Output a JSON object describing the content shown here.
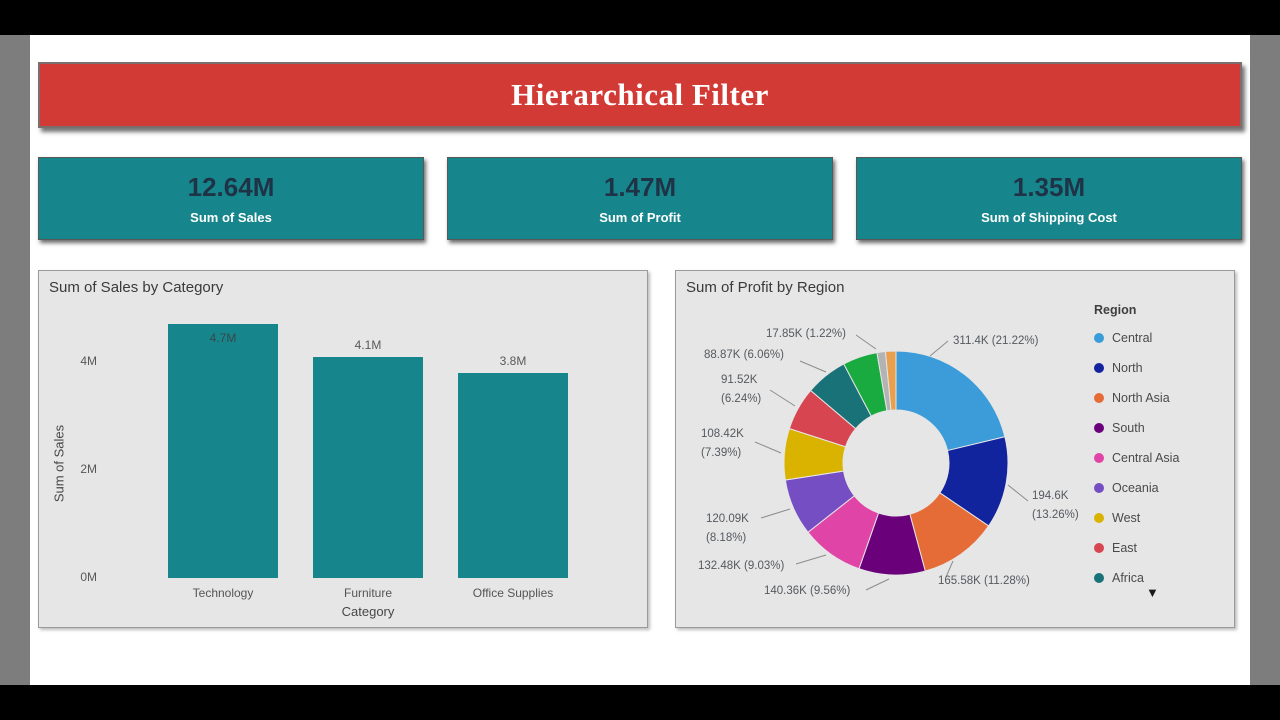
{
  "banner": {
    "title": "Hierarchical Filter"
  },
  "kpi_cards": [
    {
      "value": "12.64M",
      "label": "Sum of Sales"
    },
    {
      "value": "1.47M",
      "label": "Sum of Profit"
    },
    {
      "value": "1.35M",
      "label": "Sum of Shipping Cost"
    }
  ],
  "colors": {
    "teal": "#17868C",
    "banner_red": "#D23B35",
    "outer_bg": "#7D7D7D",
    "page_bg": "#FFFFFF",
    "panel_bg": "#E6E6E6",
    "kpi_value": "#1F3347"
  },
  "icons": {
    "legend_scroll": "chevron-down"
  },
  "chart_data": [
    {
      "type": "bar",
      "title": "Sum of Sales by Category",
      "xlabel": "Category",
      "ylabel": "Sum of Sales",
      "categories": [
        "Technology",
        "Furniture",
        "Office Supplies"
      ],
      "values": [
        4.7,
        4.1,
        3.8
      ],
      "value_labels": [
        "4.7M",
        "4.1M",
        "3.8M"
      ],
      "yticks": [
        {
          "value": 0,
          "label": "0M"
        },
        {
          "value": 2,
          "label": "2M"
        },
        {
          "value": 4,
          "label": "4M"
        }
      ],
      "ylim": [
        0,
        4.85
      ],
      "grid": false,
      "bar_color": "#17868C"
    },
    {
      "type": "pie",
      "subtype": "donut",
      "title": "Sum of Profit by Region",
      "legend_title": "Region",
      "legend_position": "right",
      "slices": [
        {
          "label": "Central",
          "value": "311.4K",
          "pct": 21.22,
          "color": "#3B9CD9",
          "callout": "311.4K (21.22%)"
        },
        {
          "label": "North",
          "value": "194.6K",
          "pct": 13.26,
          "color": "#12239E",
          "callout": "194.6K (13.26%)"
        },
        {
          "label": "North Asia",
          "value": "165.58K",
          "pct": 11.28,
          "color": "#E66C37",
          "callout": "165.58K (11.28%)"
        },
        {
          "label": "South",
          "value": "140.36K",
          "pct": 9.56,
          "color": "#6B007B",
          "callout": "140.36K (9.56%)"
        },
        {
          "label": "Central Asia",
          "value": "132.48K",
          "pct": 9.03,
          "color": "#E044A7",
          "callout": "132.48K (9.03%)"
        },
        {
          "label": "Oceania",
          "value": "120.09K",
          "pct": 8.18,
          "color": "#744EC2",
          "callout": "120.09K (8.18%)"
        },
        {
          "label": "West",
          "value": "108.42K",
          "pct": 7.39,
          "color": "#D9B300",
          "callout": "108.42K (7.39%)"
        },
        {
          "label": "East",
          "value": "91.52K",
          "pct": 6.24,
          "color": "#D64550",
          "callout": "91.52K (6.24%)"
        },
        {
          "label": "Africa",
          "value": "88.87K",
          "pct": 6.06,
          "color": "#197278",
          "callout": "88.87K (6.06%)"
        },
        {
          "label": "",
          "value": "",
          "pct": 5.0,
          "color": "#1AAB40",
          "callout": ""
        },
        {
          "label": "",
          "value": "17.85K",
          "pct": 1.22,
          "color": "#B3B3B3",
          "callout": "17.85K (1.22%)"
        },
        {
          "label": "",
          "value": "",
          "pct": 1.5,
          "color": "#E8A04E",
          "callout": ""
        }
      ]
    }
  ]
}
